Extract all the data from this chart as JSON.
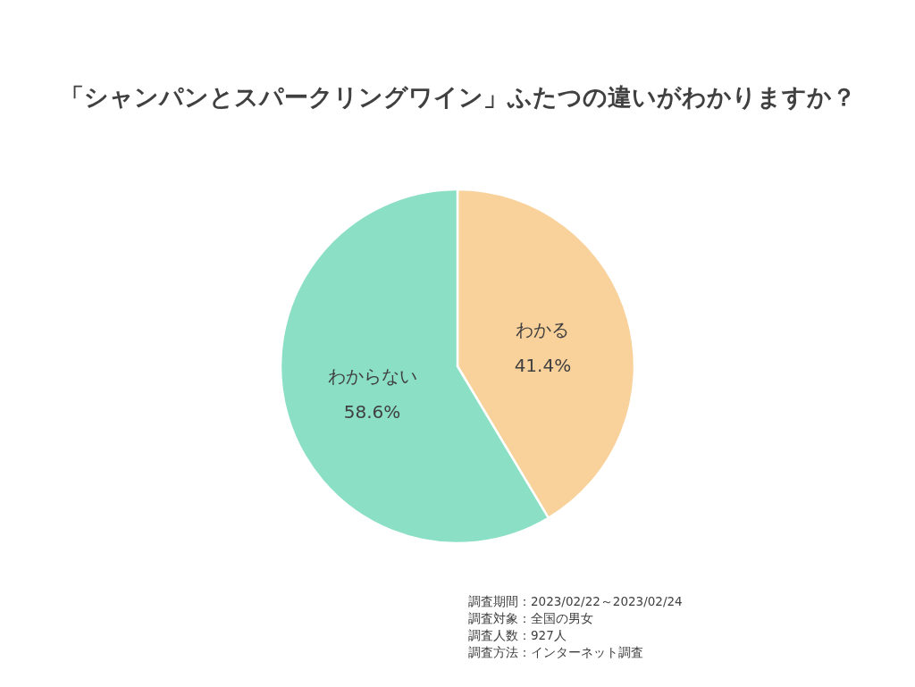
{
  "chart_data": {
    "type": "pie",
    "title": "「シャンパンとスパークリングワイン」ふたつの違いがわかりますか？",
    "categories": [
      "わかる",
      "わからない"
    ],
    "values": [
      41.4,
      58.6
    ],
    "colors": [
      "#f9d19b",
      "#8adfc4"
    ],
    "value_labels": [
      "41.4%",
      "58.6%"
    ],
    "annotations": [
      "調査期間：2023/02/22～2023/02/24",
      "調査対象：全国の男女",
      "調査人数：927人",
      "調査方法：インターネット調査"
    ]
  }
}
